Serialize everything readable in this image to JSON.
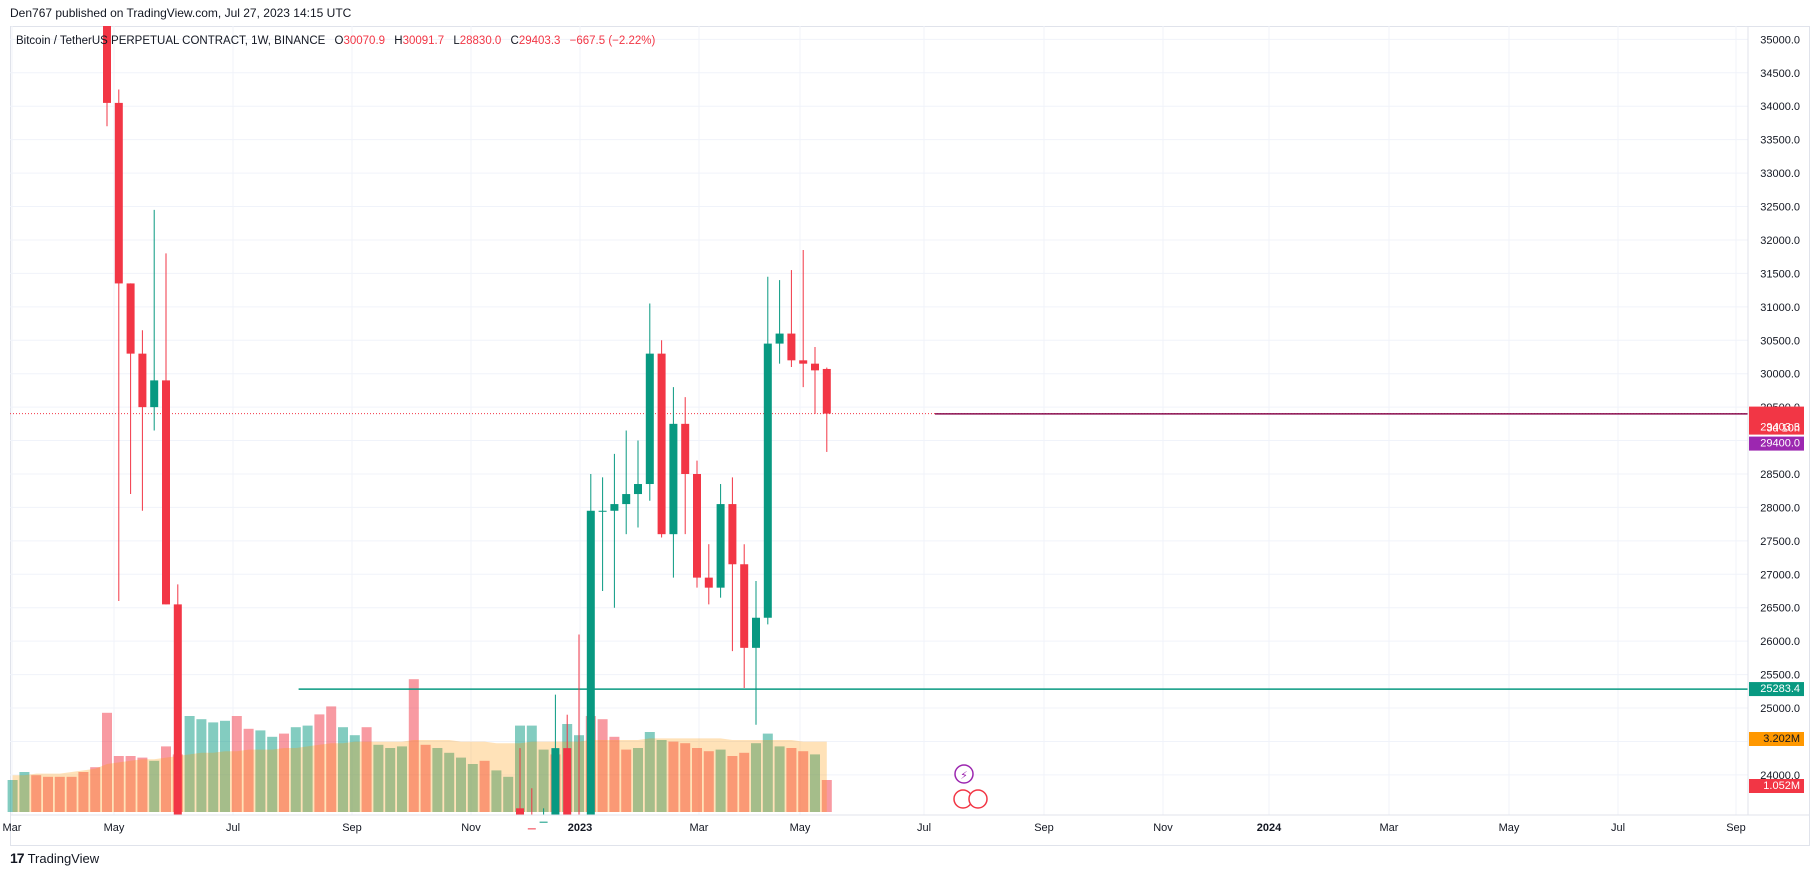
{
  "header": {
    "published_by": "Den767 published on TradingView.com, Jul 27, 2023 14:15 UTC"
  },
  "legend": {
    "symbol": "Bitcoin / TetherUS PERPETUAL CONTRACT, 1W, BINANCE",
    "o_label": "O",
    "o_value": "30070.9",
    "h_label": "H",
    "h_value": "30091.7",
    "l_label": "L",
    "l_value": "28830.0",
    "c_label": "C",
    "c_value": "29403.3",
    "change": "−667.5 (−2.22%)"
  },
  "footer": {
    "brand": "TradingView",
    "mark": "17"
  },
  "colors": {
    "up": "#089981",
    "down": "#f23645",
    "level": "#880e4f",
    "support": "#089981",
    "volume_ma": "#ff9800",
    "purple": "#9c27b0"
  },
  "chart_data": {
    "type": "candlestick",
    "title": "Bitcoin / TetherUS PERPETUAL CONTRACT, 1W, BINANCE",
    "y_axis": {
      "range": [
        23400,
        35200
      ],
      "ticks": [
        "35000.0",
        "34500.0",
        "34000.0",
        "33500.0",
        "33000.0",
        "32500.0",
        "32000.0",
        "31500.0",
        "31000.0",
        "30500.0",
        "30000.0",
        "29500.0",
        "29000.0",
        "28500.0",
        "28000.0",
        "27500.0",
        "27000.0",
        "26500.0",
        "26000.0",
        "25500.0",
        "25000.0",
        "24500.0",
        "24000.0"
      ]
    },
    "x_axis": {
      "ticks": [
        "Mar",
        "May",
        "Jul",
        "Sep",
        "Nov",
        "2023",
        "Mar",
        "May",
        "Jul",
        "Sep",
        "Nov",
        "2024",
        "Mar",
        "May",
        "Jul",
        "Sep"
      ]
    },
    "price_labels": {
      "last_price": "29403.3",
      "countdown": "3d 10h",
      "level_price": "29400.0",
      "support_price": "25283.4",
      "volume_ma": "3.202M",
      "volume": "1.052M"
    },
    "horizontal_levels": [
      {
        "name": "resistance",
        "price": 29400.0,
        "from_week": 78
      },
      {
        "name": "support",
        "price": 25283.4,
        "from_week": 20
      }
    ],
    "candles": [
      {
        "w": 8,
        "o": 35200,
        "h": 35200,
        "l": 33700,
        "c": 34050
      },
      {
        "w": 9,
        "o": 34050,
        "h": 34250,
        "l": 26600,
        "c": 31350
      },
      {
        "w": 10,
        "o": 31350,
        "h": 31350,
        "l": 28200,
        "c": 30300
      },
      {
        "w": 11,
        "o": 30300,
        "h": 30650,
        "l": 27950,
        "c": 29500
      },
      {
        "w": 12,
        "o": 29500,
        "h": 32450,
        "l": 29150,
        "c": 29900
      },
      {
        "w": 13,
        "o": 29900,
        "h": 31800,
        "l": 26550,
        "c": 26550
      },
      {
        "w": 14,
        "o": 26550,
        "h": 26850,
        "l": 17600,
        "c": 20500
      },
      {
        "w": 43,
        "o": 23500,
        "h": 24400,
        "l": 21000,
        "c": 23200
      },
      {
        "w": 44,
        "o": 23200,
        "h": 23800,
        "l": 21400,
        "c": 22300
      },
      {
        "w": 45,
        "o": 22300,
        "h": 23500,
        "l": 22100,
        "c": 23300
      },
      {
        "w": 46,
        "o": 23300,
        "h": 25200,
        "l": 23200,
        "c": 24400
      },
      {
        "w": 47,
        "o": 24400,
        "h": 24900,
        "l": 21400,
        "c": 22300
      },
      {
        "w": 48,
        "o": 22300,
        "h": 26100,
        "l": 19600,
        "c": 20600
      },
      {
        "w": 49,
        "o": 20600,
        "h": 28500,
        "l": 20200,
        "c": 27950
      },
      {
        "w": 50,
        "o": 27950,
        "h": 28450,
        "l": 26750,
        "c": 27950
      },
      {
        "w": 51,
        "o": 27950,
        "h": 28800,
        "l": 26500,
        "c": 28050
      },
      {
        "w": 52,
        "o": 28050,
        "h": 29150,
        "l": 27600,
        "c": 28200
      },
      {
        "w": 53,
        "o": 28200,
        "h": 29000,
        "l": 27700,
        "c": 28350
      },
      {
        "w": 54,
        "o": 28350,
        "h": 31050,
        "l": 28100,
        "c": 30300
      },
      {
        "w": 55,
        "o": 30300,
        "h": 30500,
        "l": 27550,
        "c": 27600
      },
      {
        "w": 56,
        "o": 27600,
        "h": 29800,
        "l": 26950,
        "c": 29250
      },
      {
        "w": 57,
        "o": 29250,
        "h": 29650,
        "l": 27600,
        "c": 28500
      },
      {
        "w": 58,
        "o": 28500,
        "h": 28700,
        "l": 26800,
        "c": 26950
      },
      {
        "w": 59,
        "o": 26950,
        "h": 27450,
        "l": 26550,
        "c": 26800
      },
      {
        "w": 60,
        "o": 26800,
        "h": 28350,
        "l": 26650,
        "c": 28050
      },
      {
        "w": 61,
        "o": 28050,
        "h": 28450,
        "l": 25850,
        "c": 27150
      },
      {
        "w": 62,
        "o": 27150,
        "h": 27450,
        "l": 25300,
        "c": 25900
      },
      {
        "w": 63,
        "o": 25900,
        "h": 26900,
        "l": 24750,
        "c": 26350
      },
      {
        "w": 64,
        "o": 26350,
        "h": 31450,
        "l": 26250,
        "c": 30450
      },
      {
        "w": 65,
        "o": 30450,
        "h": 31400,
        "l": 30150,
        "c": 30600
      },
      {
        "w": 66,
        "o": 30600,
        "h": 31550,
        "l": 30100,
        "c": 30200
      },
      {
        "w": 67,
        "o": 30200,
        "h": 31850,
        "l": 29800,
        "c": 30150
      },
      {
        "w": 68,
        "o": 30150,
        "h": 30400,
        "l": 29400,
        "c": 30050
      },
      {
        "w": 69,
        "o": 30070.9,
        "h": 30091.7,
        "l": 28830.0,
        "c": 29403.3
      }
    ],
    "volume": [
      {
        "w": 0,
        "v": 20,
        "up": true
      },
      {
        "w": 1,
        "v": 25,
        "up": true
      },
      {
        "w": 2,
        "v": 23,
        "up": false
      },
      {
        "w": 3,
        "v": 22,
        "up": false
      },
      {
        "w": 4,
        "v": 22,
        "up": false
      },
      {
        "w": 5,
        "v": 22,
        "up": false
      },
      {
        "w": 6,
        "v": 25,
        "up": false
      },
      {
        "w": 7,
        "v": 28,
        "up": false
      },
      {
        "w": 8,
        "v": 62,
        "up": false
      },
      {
        "w": 9,
        "v": 35,
        "up": false
      },
      {
        "w": 10,
        "v": 35,
        "up": false
      },
      {
        "w": 11,
        "v": 34,
        "up": false
      },
      {
        "w": 12,
        "v": 32,
        "up": true
      },
      {
        "w": 13,
        "v": 41,
        "up": false
      },
      {
        "w": 14,
        "v": 36,
        "up": false
      },
      {
        "w": 15,
        "v": 60,
        "up": true
      },
      {
        "w": 16,
        "v": 58,
        "up": true
      },
      {
        "w": 17,
        "v": 56,
        "up": true
      },
      {
        "w": 18,
        "v": 57,
        "up": true
      },
      {
        "w": 19,
        "v": 60,
        "up": false
      },
      {
        "w": 20,
        "v": 52,
        "up": false
      },
      {
        "w": 21,
        "v": 51,
        "up": true
      },
      {
        "w": 22,
        "v": 47,
        "up": true
      },
      {
        "w": 23,
        "v": 49,
        "up": false
      },
      {
        "w": 24,
        "v": 53,
        "up": true
      },
      {
        "w": 25,
        "v": 54,
        "up": true
      },
      {
        "w": 26,
        "v": 61,
        "up": false
      },
      {
        "w": 27,
        "v": 66,
        "up": false
      },
      {
        "w": 28,
        "v": 53,
        "up": true
      },
      {
        "w": 29,
        "v": 48,
        "up": true
      },
      {
        "w": 30,
        "v": 53,
        "up": false
      },
      {
        "w": 31,
        "v": 42,
        "up": true
      },
      {
        "w": 32,
        "v": 40,
        "up": true
      },
      {
        "w": 33,
        "v": 41,
        "up": true
      },
      {
        "w": 34,
        "v": 83,
        "up": false
      },
      {
        "w": 35,
        "v": 42,
        "up": false
      },
      {
        "w": 36,
        "v": 40,
        "up": true
      },
      {
        "w": 37,
        "v": 37,
        "up": true
      },
      {
        "w": 38,
        "v": 34,
        "up": true
      },
      {
        "w": 39,
        "v": 30,
        "up": true
      },
      {
        "w": 40,
        "v": 32,
        "up": false
      },
      {
        "w": 41,
        "v": 26,
        "up": true
      },
      {
        "w": 42,
        "v": 22,
        "up": true
      },
      {
        "w": 43,
        "v": 54,
        "up": true
      },
      {
        "w": 44,
        "v": 54,
        "up": true
      },
      {
        "w": 45,
        "v": 39,
        "up": true
      },
      {
        "w": 46,
        "v": 36,
        "up": false
      },
      {
        "w": 47,
        "v": 55,
        "up": true
      },
      {
        "w": 48,
        "v": 48,
        "up": true
      },
      {
        "w": 49,
        "v": 60,
        "up": false
      },
      {
        "w": 50,
        "v": 58,
        "up": false
      },
      {
        "w": 51,
        "v": 47,
        "up": false
      },
      {
        "w": 52,
        "v": 39,
        "up": false
      },
      {
        "w": 53,
        "v": 40,
        "up": true
      },
      {
        "w": 54,
        "v": 50,
        "up": true
      },
      {
        "w": 55,
        "v": 45,
        "up": true
      },
      {
        "w": 56,
        "v": 44,
        "up": false
      },
      {
        "w": 57,
        "v": 43,
        "up": false
      },
      {
        "w": 58,
        "v": 40,
        "up": false
      },
      {
        "w": 59,
        "v": 38,
        "up": false
      },
      {
        "w": 60,
        "v": 39,
        "up": true
      },
      {
        "w": 61,
        "v": 35,
        "up": false
      },
      {
        "w": 62,
        "v": 37,
        "up": false
      },
      {
        "w": 63,
        "v": 43,
        "up": true
      },
      {
        "w": 64,
        "v": 49,
        "up": true
      },
      {
        "w": 65,
        "v": 41,
        "up": true
      },
      {
        "w": 66,
        "v": 40,
        "up": false
      },
      {
        "w": 67,
        "v": 38,
        "up": false
      },
      {
        "w": 68,
        "v": 36,
        "up": true
      },
      {
        "w": 69,
        "v": 20,
        "up": false
      }
    ],
    "volume_ma": [
      23,
      23,
      24,
      24,
      24,
      25,
      26,
      27,
      30,
      31,
      32,
      33,
      33,
      34,
      35,
      36,
      37,
      37,
      38,
      38,
      39,
      39,
      39,
      40,
      40,
      41,
      42,
      43,
      43,
      44,
      44,
      44,
      44,
      44,
      45,
      45,
      45,
      45,
      44,
      44,
      44,
      43,
      43,
      43,
      44,
      44,
      44,
      44,
      44,
      45,
      45,
      45,
      45,
      45,
      46,
      46,
      46,
      46,
      46,
      46,
      46,
      45,
      45,
      45,
      45,
      45,
      45,
      44,
      44,
      44
    ]
  }
}
